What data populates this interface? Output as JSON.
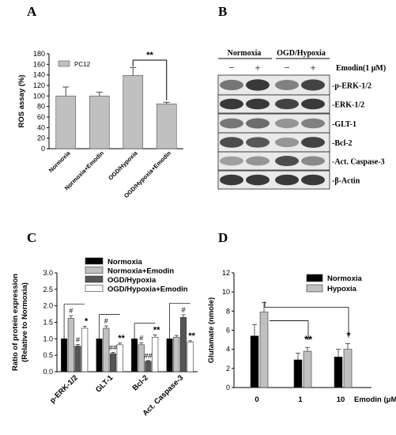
{
  "panels": {
    "A": "A",
    "B": "B",
    "C": "C",
    "D": "D"
  },
  "colors": {
    "gray_bar": "#c0c0c0",
    "black_bar": "#000000",
    "dark_gray_bar": "#555555",
    "white_bar": "#ffffff"
  },
  "chart_data": [
    {
      "panel": "A",
      "type": "bar",
      "title": "",
      "ylabel": "ROS assay (%)",
      "ylim": [
        0,
        180
      ],
      "yticks": [
        0,
        20,
        40,
        60,
        80,
        100,
        120,
        140,
        160,
        180
      ],
      "legend": [
        "PC12"
      ],
      "legend_position": "top-left",
      "categories": [
        "Normoxia",
        "Normoxia+Emodin",
        "OGD/Hypoxia",
        "OGD/Hypoxia+Emodin"
      ],
      "series": [
        {
          "name": "PC12",
          "values": [
            100,
            100,
            139,
            85
          ],
          "errors": [
            17,
            7,
            15,
            3
          ]
        }
      ],
      "annotations": [
        {
          "text": "**",
          "between": [
            "OGD/Hypoxia",
            "OGD/Hypoxia+Emodin"
          ]
        }
      ]
    },
    {
      "panel": "B",
      "type": "western-blot",
      "groups": [
        "Normoxia",
        "OGD/Hypoxia"
      ],
      "treatment_label": "Emodin(1 μM)",
      "lane_signs": [
        "−",
        "+",
        "−",
        "+"
      ],
      "bands": [
        "-p-ERK-1/2",
        "-ERK-1/2",
        "-GLT-1",
        "-Bcl-2",
        "-Act. Caspase-3",
        "-β-Actin"
      ]
    },
    {
      "panel": "C",
      "type": "bar",
      "ylabel": "Ratio of protein expression (Relative to Normoxia)",
      "ylabel_lines": [
        "Ratio of protein expression",
        "(Relative to Normoxia)"
      ],
      "ylim": [
        0,
        3.0
      ],
      "yticks": [
        "0.0",
        "0.5",
        "1.0",
        "1.5",
        "2.0",
        "2.5",
        "3.0"
      ],
      "legend_position": "top",
      "categories": [
        "p-ERK-1/2",
        "GLT-1",
        "Bcl-2",
        "Act. Caspase-3"
      ],
      "series": [
        {
          "name": "Normoxia",
          "values": [
            1.0,
            1.0,
            1.0,
            1.0
          ],
          "errors": [
            0,
            0,
            0,
            0
          ]
        },
        {
          "name": "Normoxia+Emodin",
          "values": [
            1.62,
            1.32,
            0.82,
            1.05
          ],
          "errors": [
            0.08,
            0.07,
            0.06,
            0.05
          ]
        },
        {
          "name": "OGD/Hypoxia",
          "values": [
            0.78,
            0.55,
            0.32,
            1.65
          ],
          "errors": [
            0.05,
            0.04,
            0.02,
            0.08
          ]
        },
        {
          "name": "OGD/Hypoxia+Emodin",
          "values": [
            1.32,
            0.82,
            1.05,
            0.9
          ],
          "errors": [
            0.06,
            0.05,
            0.07,
            0.04
          ]
        }
      ],
      "annotations": [
        {
          "text": "#",
          "category": "p-ERK-1/2",
          "series": "Normoxia+Emodin"
        },
        {
          "text": "#",
          "category": "p-ERK-1/2",
          "series": "OGD/Hypoxia"
        },
        {
          "text": "*",
          "category": "p-ERK-1/2",
          "series": "OGD/Hypoxia+Emodin"
        },
        {
          "text": "#",
          "category": "GLT-1",
          "series": "Normoxia+Emodin"
        },
        {
          "text": "##",
          "category": "GLT-1",
          "series": "OGD/Hypoxia"
        },
        {
          "text": "**",
          "category": "GLT-1",
          "series": "OGD/Hypoxia+Emodin"
        },
        {
          "text": "#",
          "category": "Bcl-2",
          "series": "Normoxia+Emodin"
        },
        {
          "text": "##",
          "category": "Bcl-2",
          "series": "OGD/Hypoxia"
        },
        {
          "text": "**",
          "category": "Bcl-2",
          "series": "OGD/Hypoxia+Emodin"
        },
        {
          "text": "#",
          "category": "Act. Caspase-3",
          "series": "OGD/Hypoxia"
        },
        {
          "text": "**",
          "category": "Act. Caspase-3",
          "series": "OGD/Hypoxia+Emodin"
        }
      ]
    },
    {
      "panel": "D",
      "type": "bar",
      "ylabel": "Glutamate (nmole)",
      "xlabel": "Emodin (μM)",
      "ylim": [
        0,
        12
      ],
      "yticks": [
        0,
        2,
        4,
        6,
        8,
        10,
        12
      ],
      "legend_position": "top-right",
      "categories": [
        "0",
        "1",
        "10"
      ],
      "series": [
        {
          "name": "Normoxia",
          "values": [
            5.4,
            2.9,
            3.2
          ],
          "errors": [
            1.2,
            0.7,
            0.8
          ]
        },
        {
          "name": "Hypoxia",
          "values": [
            7.9,
            3.8,
            4.0
          ],
          "errors": [
            1.0,
            0.4,
            0.6
          ]
        }
      ],
      "annotations": [
        {
          "text": "**",
          "category": "1",
          "series": "Hypoxia"
        },
        {
          "text": "*",
          "category": "10",
          "series": "Hypoxia"
        }
      ]
    }
  ]
}
